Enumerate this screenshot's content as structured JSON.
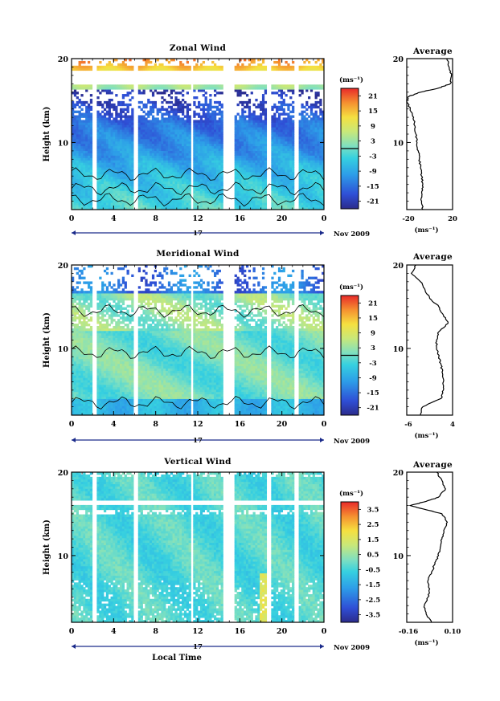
{
  "figure": {
    "date_label": "Nov 2009",
    "day_label": "17",
    "xlabel": "Local Time",
    "avg_title": "Average",
    "ylabel": "Height (km)",
    "unit": "(ms⁻¹)",
    "avg_unit": "(ms⁻¹)"
  },
  "chart_data": [
    {
      "type": "heatmap",
      "name": "zonal",
      "title": "Zonal Wind",
      "ylabel": "Height (km)",
      "xlabel": "",
      "x_ticks": [
        "0",
        "4",
        "8",
        "12",
        "16",
        "20",
        "0"
      ],
      "x_range_hours": [
        0,
        24
      ],
      "y_ticks": [
        "20",
        "10"
      ],
      "y_range_km": [
        2,
        20
      ],
      "colorbar": {
        "unit": "(ms⁻¹)",
        "ticks": [
          "21",
          "15",
          "9",
          "3",
          "-3",
          "-9",
          "-15",
          "-21"
        ],
        "range": [
          -24,
          24
        ],
        "zero_line": 0
      },
      "data_gaps_hours": [
        [
          2.0,
          2.3
        ],
        [
          6.0,
          6.3
        ],
        [
          11.3,
          11.6
        ],
        [
          14.4,
          15.6
        ],
        [
          18.6,
          18.9
        ],
        [
          21.2,
          21.6
        ]
      ],
      "profile": {
        "title": "Average",
        "xlim": [
          -20,
          20
        ],
        "x_ticks": [
          "-20",
          "20"
        ],
        "y_ticks": [
          "20",
          "10"
        ],
        "unit": "(ms⁻¹)",
        "height_km": [
          2,
          3,
          4,
          5,
          6,
          7,
          8,
          9,
          10,
          11,
          12,
          13,
          14,
          15,
          15.5,
          16,
          16.5,
          17,
          18,
          19,
          20
        ],
        "values": [
          -6,
          -7,
          -7,
          -6,
          -7,
          -8,
          -9,
          -10,
          -11,
          -12,
          -13,
          -14,
          -17,
          -20,
          -18,
          -8,
          8,
          18,
          19,
          17,
          15
        ]
      }
    },
    {
      "type": "heatmap",
      "name": "meridional",
      "title": "Meridional Wind",
      "ylabel": "Height (km)",
      "xlabel": "",
      "x_ticks": [
        "0",
        "4",
        "8",
        "12",
        "16",
        "20",
        "0"
      ],
      "x_range_hours": [
        0,
        24
      ],
      "y_ticks": [
        "20",
        "10"
      ],
      "y_range_km": [
        2,
        20
      ],
      "colorbar": {
        "unit": "(ms⁻¹)",
        "ticks": [
          "21",
          "15",
          "9",
          "3",
          "-3",
          "-9",
          "-15",
          "-21"
        ],
        "range": [
          -24,
          24
        ],
        "zero_line": 0
      },
      "data_gaps_hours": [
        [
          2.0,
          2.3
        ],
        [
          6.0,
          6.3
        ],
        [
          11.3,
          11.6
        ],
        [
          14.4,
          15.6
        ],
        [
          18.6,
          18.9
        ],
        [
          21.2,
          21.6
        ]
      ],
      "profile": {
        "title": "Average",
        "xlim": [
          -6,
          4
        ],
        "x_ticks": [
          "-6",
          "4"
        ],
        "y_ticks": [
          "20",
          "10"
        ],
        "unit": "(ms⁻¹)",
        "height_km": [
          2,
          3,
          4,
          5,
          6,
          7,
          8,
          9,
          10,
          11,
          12,
          13,
          14,
          15,
          16,
          17,
          18,
          19,
          20
        ],
        "values": [
          -3,
          -2.5,
          1.5,
          2,
          2,
          1.8,
          1.5,
          1,
          0.5,
          0.5,
          1,
          3,
          2,
          1,
          -1,
          -2,
          -3,
          -5,
          -4
        ]
      }
    },
    {
      "type": "heatmap",
      "name": "vertical",
      "title": "Vertical Wind",
      "ylabel": "Height (km)",
      "xlabel": "Local Time",
      "x_ticks": [
        "0",
        "4",
        "8",
        "12",
        "16",
        "20",
        "0"
      ],
      "x_range_hours": [
        0,
        24
      ],
      "y_ticks": [
        "20",
        "10"
      ],
      "y_range_km": [
        2,
        20
      ],
      "colorbar": {
        "unit": "(ms⁻¹)",
        "ticks": [
          "3.5",
          "2.5",
          "1.5",
          "0.5",
          "-0.5",
          "-1.5",
          "-2.5",
          "-3.5"
        ],
        "range": [
          -4,
          4
        ],
        "zero_line": null
      },
      "data_gaps_hours": [
        [
          2.0,
          2.3
        ],
        [
          6.0,
          6.3
        ],
        [
          11.3,
          11.6
        ],
        [
          14.4,
          15.6
        ],
        [
          18.6,
          18.9
        ],
        [
          21.2,
          21.6
        ]
      ],
      "profile": {
        "title": "Average",
        "xlim": [
          -0.16,
          0.1
        ],
        "x_ticks": [
          "-0.16",
          "0.10"
        ],
        "y_ticks": [
          "20",
          "10"
        ],
        "unit": "(ms⁻¹)",
        "height_km": [
          2,
          3,
          4,
          5,
          6,
          7,
          8,
          9,
          10,
          11,
          12,
          13,
          14,
          15,
          15.5,
          16,
          16.5,
          17,
          18,
          19,
          20
        ],
        "values": [
          -0.02,
          -0.05,
          -0.06,
          -0.04,
          -0.03,
          -0.04,
          -0.02,
          0.0,
          0.02,
          0.03,
          0.04,
          0.05,
          0.07,
          0.04,
          -0.05,
          -0.14,
          -0.05,
          0.02,
          0.06,
          0.04,
          0.01
        ]
      }
    }
  ]
}
